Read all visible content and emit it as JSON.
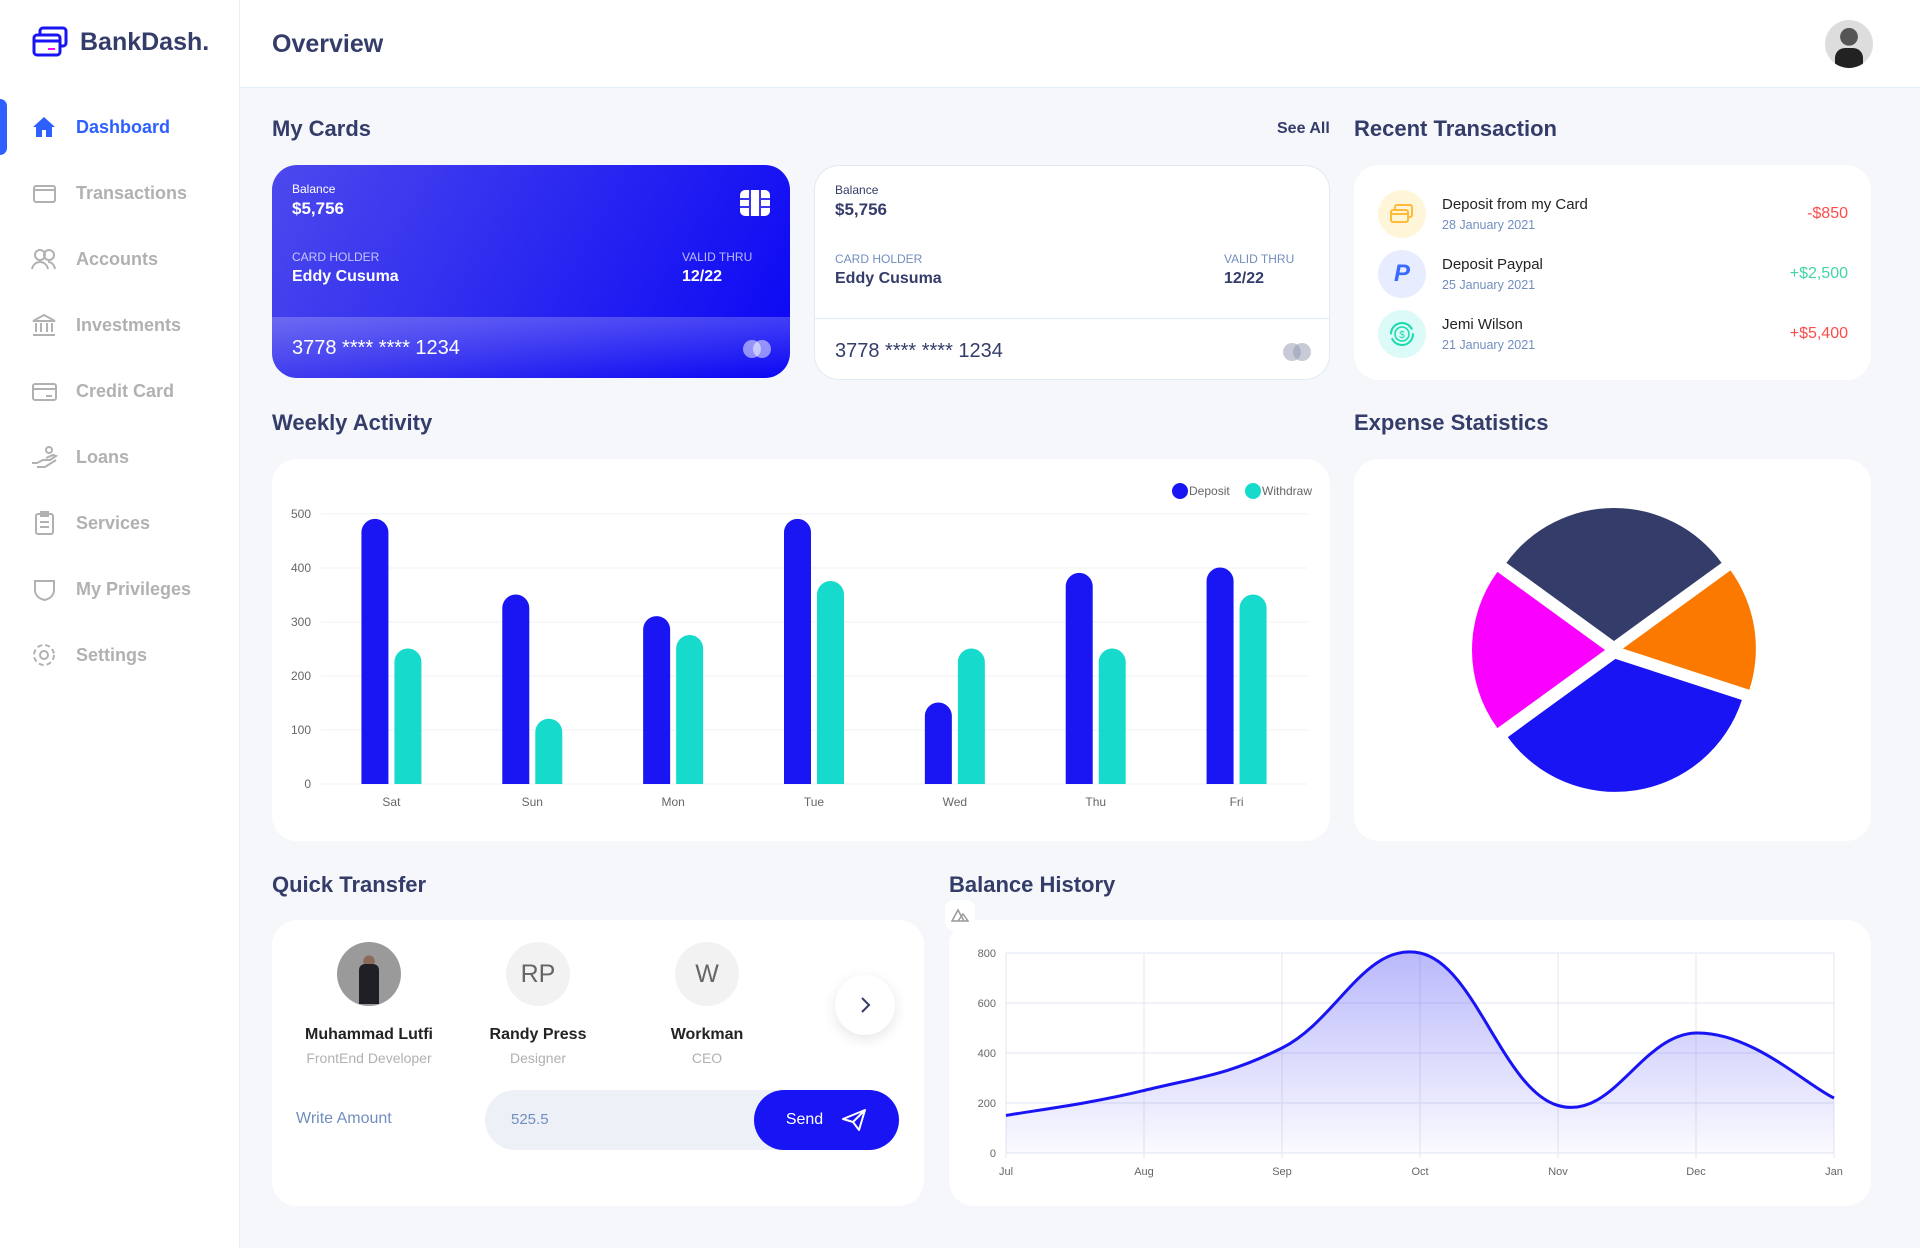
{
  "app": {
    "name": "BankDash.",
    "page_title": "Overview"
  },
  "sidebar": {
    "items": [
      {
        "label": "Dashboard",
        "icon": "home-icon",
        "active": true
      },
      {
        "label": "Transactions",
        "icon": "wallet-icon"
      },
      {
        "label": "Accounts",
        "icon": "users-icon"
      },
      {
        "label": "Investments",
        "icon": "bank-icon"
      },
      {
        "label": "Credit Card",
        "icon": "credit-card-icon"
      },
      {
        "label": "Loans",
        "icon": "hand-coins-icon"
      },
      {
        "label": "Services",
        "icon": "clipboard-icon"
      },
      {
        "label": "My Privileges",
        "icon": "shield-icon"
      },
      {
        "label": "Settings",
        "icon": "gear-icon"
      }
    ]
  },
  "my_cards": {
    "title": "My Cards",
    "see_all": "See All",
    "cards": [
      {
        "balance_label": "Balance",
        "balance": "$5,756",
        "holder_label": "CARD HOLDER",
        "holder": "Eddy Cusuma",
        "valid_label": "VALID THRU",
        "valid": "12/22",
        "number": "3778 **** **** 1234"
      },
      {
        "balance_label": "Balance",
        "balance": "$5,756",
        "holder_label": "CARD HOLDER",
        "holder": "Eddy Cusuma",
        "valid_label": "VALID THRU",
        "valid": "12/22",
        "number": "3778 **** **** 1234"
      }
    ]
  },
  "recent": {
    "title": "Recent Transaction",
    "items": [
      {
        "name": "Deposit from my Card",
        "date": "28 January 2021",
        "amount": "-$850",
        "color": "#ff4b4a",
        "icon": "card-icon",
        "bg": "#fff5d9"
      },
      {
        "name": "Deposit Paypal",
        "date": "25 January 2021",
        "amount": "+$2,500",
        "color": "#41d4a8",
        "icon": "paypal-icon",
        "bg": "#e7edff"
      },
      {
        "name": "Jemi Wilson",
        "date": "21 January 2021",
        "amount": "+$5,400",
        "color": "#ff4b4a",
        "icon": "dollar-coin-icon",
        "bg": "#dcfaf8"
      }
    ]
  },
  "weekly": {
    "title": "Weekly Activity"
  },
  "expense": {
    "title": "Expense Statistics"
  },
  "quick": {
    "title": "Quick Transfer",
    "people": [
      {
        "name": "Muhammad Lutfi",
        "role": "FrontEnd Developer",
        "initials": ""
      },
      {
        "name": "Randy Press",
        "role": "Designer",
        "initials": "RP"
      },
      {
        "name": "Workman",
        "role": "CEO",
        "initials": "W"
      }
    ],
    "amount_label": "Write Amount",
    "amount": "525.5",
    "send": "Send"
  },
  "balance": {
    "title": "Balance History"
  },
  "chart_data": [
    {
      "type": "bar",
      "categories": [
        "Sat",
        "Sun",
        "Mon",
        "Tue",
        "Wed",
        "Thu",
        "Fri"
      ],
      "series": [
        {
          "name": "Deposit",
          "color": "#1a16f3",
          "values": [
            490,
            350,
            310,
            490,
            150,
            390,
            400
          ]
        },
        {
          "name": "Withdraw",
          "color": "#16dbcc",
          "values": [
            250,
            120,
            275,
            375,
            250,
            250,
            350
          ]
        }
      ],
      "ylim": [
        0,
        500
      ],
      "yticks": [
        0,
        100,
        200,
        300,
        400,
        500
      ],
      "grid": true,
      "legend": "top-right"
    },
    {
      "type": "pie",
      "values": [
        30,
        15,
        35,
        20
      ],
      "colors": [
        "#343c6a",
        "#fc7900",
        "#1814f3",
        "#fa00ff"
      ]
    },
    {
      "type": "area",
      "categories": [
        "Jul",
        "Aug",
        "Sep",
        "Oct",
        "Nov",
        "Dec",
        "Jan"
      ],
      "values": [
        150,
        250,
        420,
        800,
        190,
        480,
        220
      ],
      "ylim": [
        0,
        800
      ],
      "yticks": [
        0,
        200,
        400,
        600,
        800
      ],
      "grid": true,
      "color": "#1814f3"
    }
  ]
}
